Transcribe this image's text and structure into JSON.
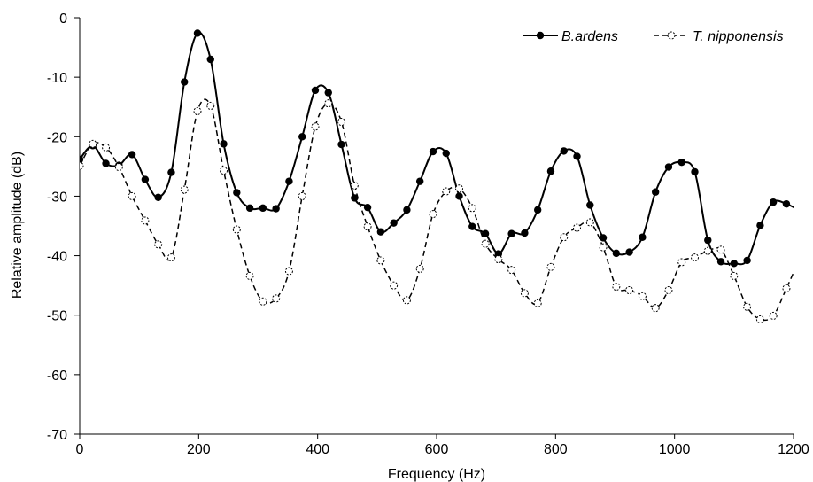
{
  "chart_data": {
    "type": "line",
    "title": "",
    "xlabel": "Frequency (Hz)",
    "ylabel": "Relative amplitude (dB)",
    "xlim": [
      0,
      1200
    ],
    "ylim": [
      -70,
      0
    ],
    "xticks": [
      0,
      200,
      400,
      600,
      800,
      1000,
      1200
    ],
    "yticks": [
      0,
      -10,
      -20,
      -30,
      -40,
      -50,
      -60,
      -70
    ],
    "grid": false,
    "legend_position": "top-right",
    "series": [
      {
        "name": "B.ardens",
        "style": "solid",
        "marker": "filled-circle",
        "color": "#000000",
        "x": [
          0,
          22,
          44,
          66,
          88,
          110,
          132,
          154,
          176,
          198,
          220,
          242,
          264,
          286,
          308,
          330,
          352,
          374,
          396,
          418,
          440,
          462,
          484,
          506,
          528,
          550,
          572,
          594,
          616,
          638,
          660,
          682,
          704,
          726,
          748,
          770,
          792,
          814,
          836,
          858,
          880,
          902,
          924,
          946,
          968,
          990,
          1012,
          1034,
          1056,
          1078,
          1100,
          1122,
          1144,
          1166,
          1188,
          1210
        ],
        "values": [
          -23.8,
          -21.5,
          -24.5,
          -24.8,
          -23,
          -27.2,
          -30.2,
          -26,
          -10.8,
          -2.6,
          -7,
          -21.2,
          -29.4,
          -32,
          -32,
          -32.1,
          -27.5,
          -20,
          -12.2,
          -12.6,
          -21.3,
          -30.3,
          -31.9,
          -36,
          -34.5,
          -32.3,
          -27.5,
          -22.5,
          -22.8,
          -30,
          -35.1,
          -36.3,
          -39.7,
          -36.3,
          -36.2,
          -32.3,
          -25.8,
          -22.4,
          -23.3,
          -31.5,
          -37,
          -39.6,
          -39.4,
          -36.9,
          -29.3,
          -25.1,
          -24.3,
          -25.9,
          -37.4,
          -41,
          -41.3,
          -40.8,
          -34.9,
          -31,
          -31.3,
          -32.4
        ]
      },
      {
        "name": "T. nipponensis",
        "style": "dashed",
        "marker": "open-circle",
        "color": "#000000",
        "x": [
          0,
          22,
          44,
          66,
          88,
          110,
          132,
          154,
          176,
          198,
          220,
          242,
          264,
          286,
          308,
          330,
          352,
          374,
          396,
          418,
          440,
          462,
          484,
          506,
          528,
          550,
          572,
          594,
          616,
          638,
          660,
          682,
          704,
          726,
          748,
          770,
          792,
          814,
          836,
          858,
          880,
          902,
          924,
          946,
          968,
          990,
          1012,
          1034,
          1056,
          1078,
          1100,
          1122,
          1144,
          1166,
          1188,
          1210
        ],
        "values": [
          -24.9,
          -21.2,
          -21.8,
          -25.1,
          -30,
          -34.1,
          -38.1,
          -40.3,
          -28.9,
          -15.7,
          -14.8,
          -25.7,
          -35.6,
          -43.4,
          -47.7,
          -47.2,
          -42.6,
          -30,
          -18.3,
          -14.4,
          -17.5,
          -28.2,
          -35.1,
          -40.8,
          -45,
          -47.5,
          -42.2,
          -33,
          -29.2,
          -28.7,
          -32,
          -38,
          -40.6,
          -42.4,
          -46.3,
          -48,
          -41.9,
          -36.9,
          -35.3,
          -34.4,
          -38.6,
          -45.2,
          -45.8,
          -46.8,
          -48.8,
          -45.8,
          -41.1,
          -40.3,
          -39.2,
          -39,
          -43.4,
          -48.6,
          -50.7,
          -50.1,
          -45.5,
          -40.6
        ]
      }
    ]
  }
}
